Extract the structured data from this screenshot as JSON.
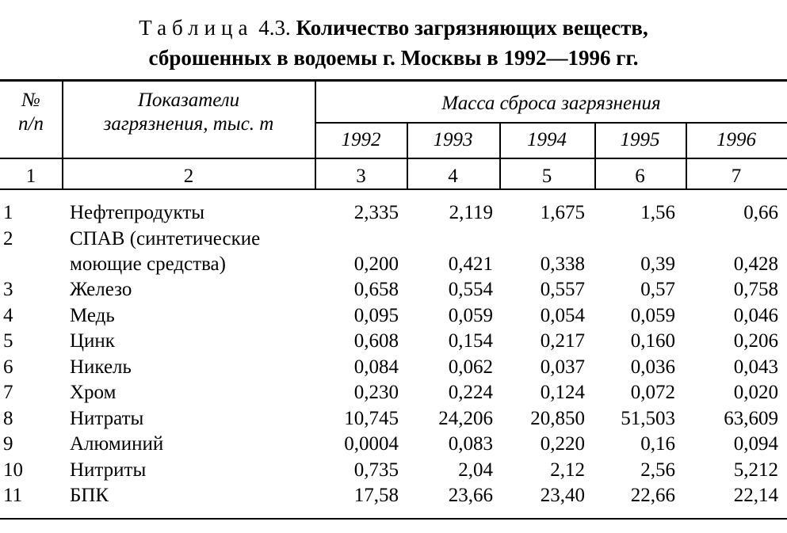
{
  "title": {
    "label": "Таблица",
    "number": "4.3.",
    "line1_bold": "Количество загрязняющих веществ,",
    "line2_bold": "сброшенных в водоемы г. Москвы в 1992—1996 гг."
  },
  "header": {
    "num": [
      "№",
      "п/п"
    ],
    "indicator": [
      "Показатели",
      "загрязнения, тыс. т"
    ],
    "group": "Масса сброса загрязнения",
    "years": [
      "1992",
      "1993",
      "1994",
      "1995",
      "1996"
    ],
    "col_numbers": [
      "1",
      "2",
      "3",
      "4",
      "5",
      "6",
      "7"
    ]
  },
  "rows": [
    {
      "n": "1",
      "name": [
        "Нефтепродукты"
      ],
      "values": [
        "2,335",
        "2,119",
        "1,675",
        "1,56",
        "0,66"
      ]
    },
    {
      "n": "2",
      "name": [
        "СПАВ (синтетические",
        "моющие средства)"
      ],
      "values": [
        "0,200",
        "0,421",
        "0,338",
        "0,39",
        "0,428"
      ]
    },
    {
      "n": "3",
      "name": [
        "Железо"
      ],
      "values": [
        "0,658",
        "0,554",
        "0,557",
        "0,57",
        "0,758"
      ]
    },
    {
      "n": "4",
      "name": [
        "Медь"
      ],
      "values": [
        "0,095",
        "0,059",
        "0,054",
        "0,059",
        "0,046"
      ]
    },
    {
      "n": "5",
      "name": [
        "Цинк"
      ],
      "values": [
        "0,608",
        "0,154",
        "0,217",
        "0,160",
        "0,206"
      ]
    },
    {
      "n": "6",
      "name": [
        "Никель"
      ],
      "values": [
        "0,084",
        "0,062",
        "0,037",
        "0,036",
        "0,043"
      ]
    },
    {
      "n": "7",
      "name": [
        "Хром"
      ],
      "values": [
        "0,230",
        "0,224",
        "0,124",
        "0,072",
        "0,020"
      ]
    },
    {
      "n": "8",
      "name": [
        "Нитраты"
      ],
      "values": [
        "10,745",
        "24,206",
        "20,850",
        "51,503",
        "63,609"
      ]
    },
    {
      "n": "9",
      "name": [
        "Алюминий"
      ],
      "values": [
        "0,0004",
        "0,083",
        "0,220",
        "0,16",
        "0,094"
      ]
    },
    {
      "n": "10",
      "name": [
        "Нитриты"
      ],
      "values": [
        "0,735",
        "2,04",
        "2,12",
        "2,56",
        "5,212"
      ]
    },
    {
      "n": "11",
      "name": [
        "БПК"
      ],
      "values": [
        "17,58",
        "23,66",
        "23,40",
        "22,66",
        "22,14"
      ]
    }
  ]
}
